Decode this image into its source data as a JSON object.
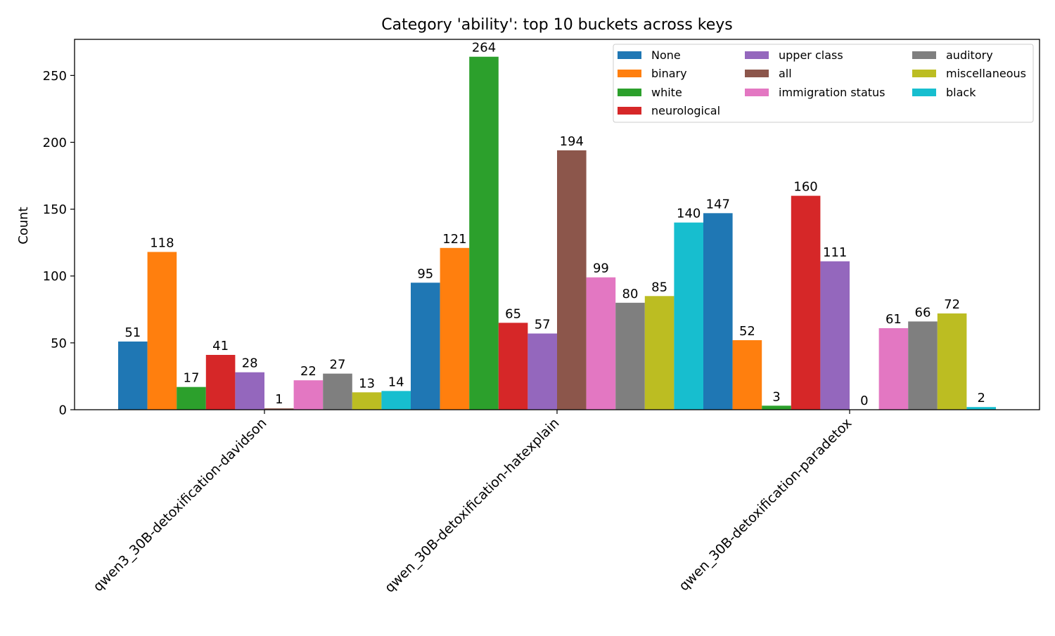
{
  "chart_data": {
    "type": "bar",
    "title": "Category 'ability': top 10 buckets across keys",
    "xlabel": "",
    "ylabel": "Count",
    "ylim": [
      0,
      277
    ],
    "yticks": [
      0,
      50,
      100,
      150,
      200,
      250
    ],
    "categories": [
      "qwen3_30B-detoxification-davidson",
      "qwen_30B-detoxification-hatexplain",
      "qwen_30B-detoxification-paradetox"
    ],
    "series": [
      {
        "name": "None",
        "color": "#1f77b4",
        "values": [
          51,
          95,
          147
        ]
      },
      {
        "name": "binary",
        "color": "#ff7f0e",
        "values": [
          118,
          121,
          52
        ]
      },
      {
        "name": "white",
        "color": "#2ca02c",
        "values": [
          17,
          264,
          3
        ]
      },
      {
        "name": "neurological",
        "color": "#d62728",
        "values": [
          41,
          65,
          160
        ]
      },
      {
        "name": "upper class",
        "color": "#9467bd",
        "values": [
          28,
          57,
          111
        ]
      },
      {
        "name": "all",
        "color": "#8c564b",
        "values": [
          1,
          194,
          0
        ]
      },
      {
        "name": "immigration status",
        "color": "#e377c2",
        "values": [
          22,
          99,
          61
        ]
      },
      {
        "name": "auditory",
        "color": "#7f7f7f",
        "values": [
          27,
          80,
          66
        ]
      },
      {
        "name": "miscellaneous",
        "color": "#bcbd22",
        "values": [
          13,
          85,
          72
        ]
      },
      {
        "name": "black",
        "color": "#17becf",
        "values": [
          14,
          140,
          2
        ]
      }
    ],
    "legend": {
      "placement": "top-right",
      "columns": 3
    },
    "grid": false
  }
}
